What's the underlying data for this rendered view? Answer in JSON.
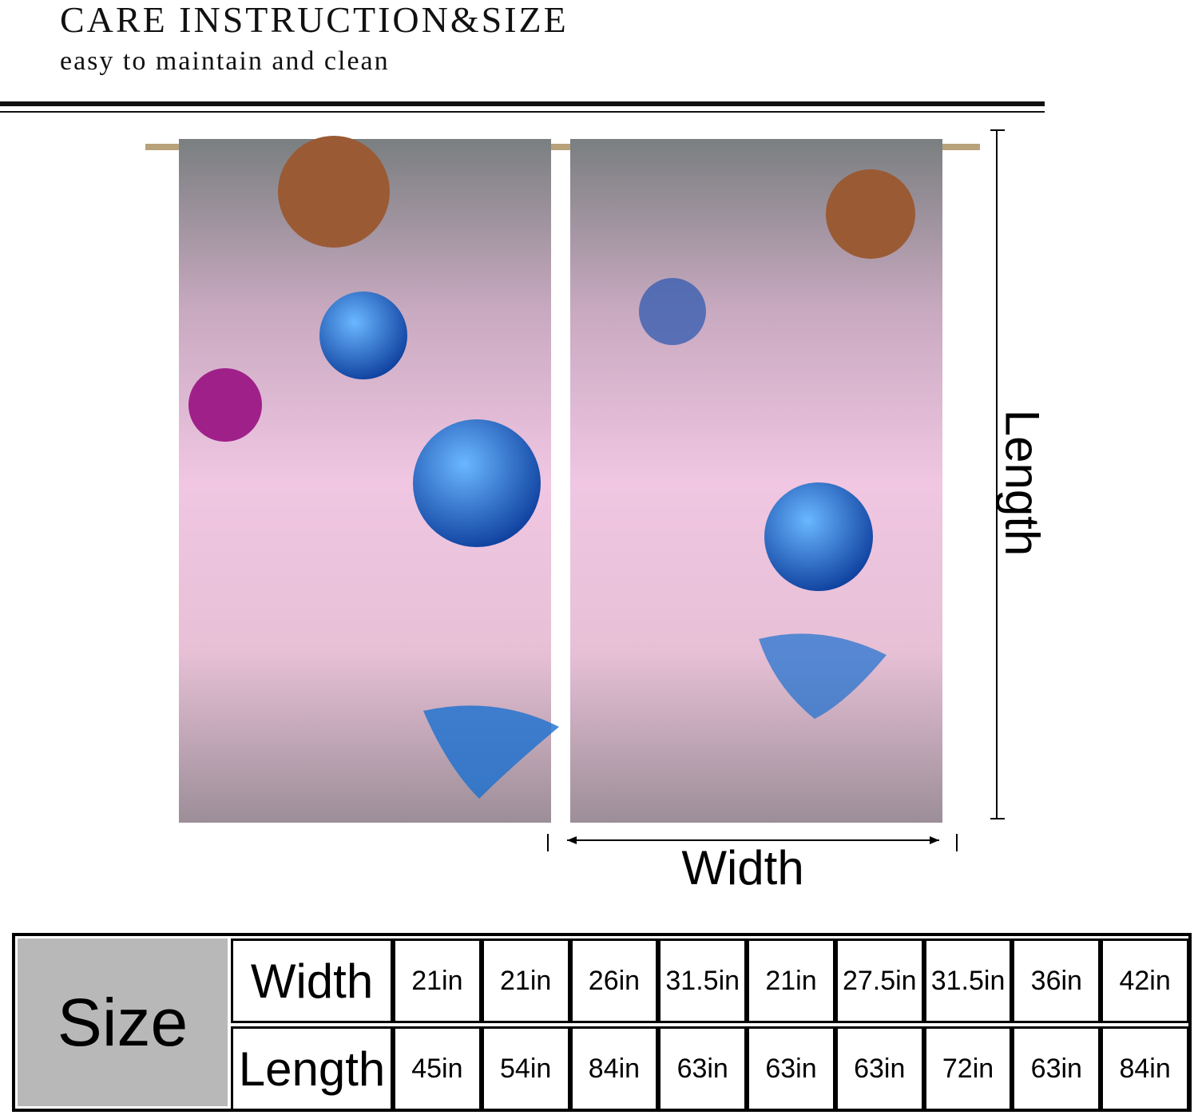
{
  "header": {
    "title": "CARE INSTRUCTION&SIZE",
    "subtitle": "easy to maintain and clean"
  },
  "diagram": {
    "width_label": "Width",
    "length_label": "Length"
  },
  "table": {
    "corner": "Size",
    "rows": [
      {
        "label": "Width",
        "cells": [
          "21in",
          "21in",
          "26in",
          "31.5in",
          "21in",
          "27.5in",
          "31.5in",
          "36in",
          "42in"
        ]
      },
      {
        "label": "Length",
        "cells": [
          "45in",
          "54in",
          "84in",
          "63in",
          "63in",
          "63in",
          "72in",
          "63in",
          "84in"
        ]
      }
    ]
  }
}
